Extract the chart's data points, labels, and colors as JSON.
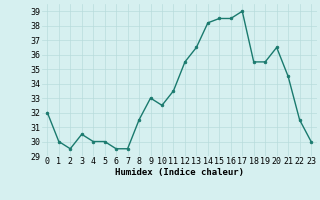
{
  "x": [
    0,
    1,
    2,
    3,
    4,
    5,
    6,
    7,
    8,
    9,
    10,
    11,
    12,
    13,
    14,
    15,
    16,
    17,
    18,
    19,
    20,
    21,
    22,
    23
  ],
  "y": [
    32,
    30,
    29.5,
    30.5,
    30,
    30,
    29.5,
    29.5,
    31.5,
    33,
    32.5,
    33.5,
    35.5,
    36.5,
    38.2,
    38.5,
    38.5,
    39,
    35.5,
    35.5,
    36.5,
    34.5,
    31.5,
    30
  ],
  "line_color": "#1a7a6e",
  "marker_color": "#1a7a6e",
  "bg_color": "#d6f0f0",
  "grid_color": "#b8dcdc",
  "xlabel": "Humidex (Indice chaleur)",
  "xlim": [
    -0.5,
    23.5
  ],
  "ylim": [
    29,
    39.5
  ],
  "yticks": [
    29,
    30,
    31,
    32,
    33,
    34,
    35,
    36,
    37,
    38,
    39
  ],
  "xticks": [
    0,
    1,
    2,
    3,
    4,
    5,
    6,
    7,
    8,
    9,
    10,
    11,
    12,
    13,
    14,
    15,
    16,
    17,
    18,
    19,
    20,
    21,
    22,
    23
  ],
  "xlabel_fontsize": 6.5,
  "tick_fontsize": 6,
  "linewidth": 1.0,
  "markersize": 2.0
}
